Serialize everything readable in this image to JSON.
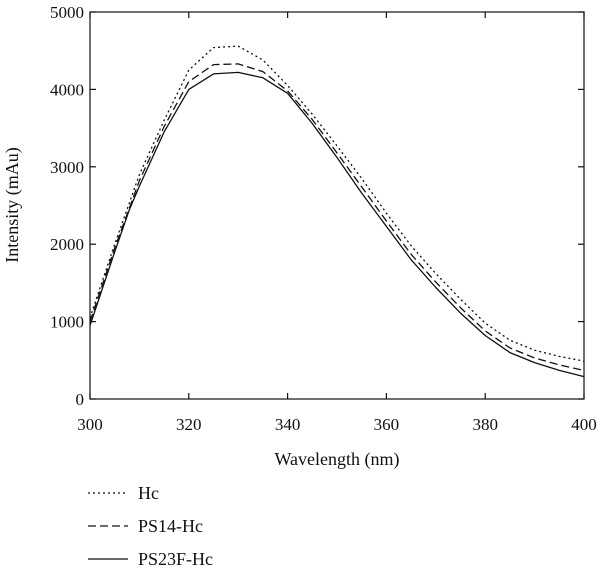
{
  "chart_data": {
    "type": "line",
    "title": "",
    "xlabel": "Wavelength (nm)",
    "ylabel": "Intensity (mAu)",
    "xlim": [
      300,
      400
    ],
    "ylim": [
      0,
      5000
    ],
    "xticks": [
      300,
      320,
      340,
      360,
      380,
      400
    ],
    "yticks": [
      0,
      1000,
      2000,
      3000,
      4000,
      5000
    ],
    "grid": false,
    "legend_position": "below plot, left",
    "series": [
      {
        "name": "Hc",
        "line_style": "dotted",
        "color": "#111111",
        "x": [
          300,
          305,
          310,
          315,
          320,
          325,
          330,
          335,
          340,
          345,
          350,
          355,
          360,
          365,
          370,
          375,
          380,
          385,
          390,
          395,
          400
        ],
        "y": [
          1050,
          2000,
          2900,
          3600,
          4250,
          4540,
          4560,
          4380,
          4050,
          3680,
          3270,
          2850,
          2400,
          1980,
          1620,
          1290,
          980,
          760,
          630,
          550,
          490
        ]
      },
      {
        "name": "PS14-Hc",
        "line_style": "dashed",
        "color": "#111111",
        "x": [
          300,
          305,
          310,
          315,
          320,
          325,
          330,
          335,
          340,
          345,
          350,
          355,
          360,
          365,
          370,
          375,
          380,
          385,
          390,
          395,
          400
        ],
        "y": [
          1000,
          1950,
          2820,
          3520,
          4100,
          4320,
          4330,
          4230,
          3980,
          3610,
          3180,
          2740,
          2300,
          1870,
          1510,
          1180,
          880,
          660,
          530,
          440,
          370
        ]
      },
      {
        "name": "PS23F-Hc",
        "line_style": "solid",
        "color": "#111111",
        "x": [
          300,
          305,
          308,
          310,
          315,
          320,
          325,
          330,
          335,
          340,
          345,
          350,
          355,
          360,
          365,
          370,
          375,
          380,
          385,
          390,
          395,
          400
        ],
        "y": [
          950,
          1900,
          2450,
          2750,
          3450,
          4000,
          4200,
          4220,
          4150,
          3950,
          3560,
          3120,
          2660,
          2230,
          1800,
          1440,
          1110,
          820,
          600,
          470,
          370,
          290
        ]
      }
    ]
  }
}
